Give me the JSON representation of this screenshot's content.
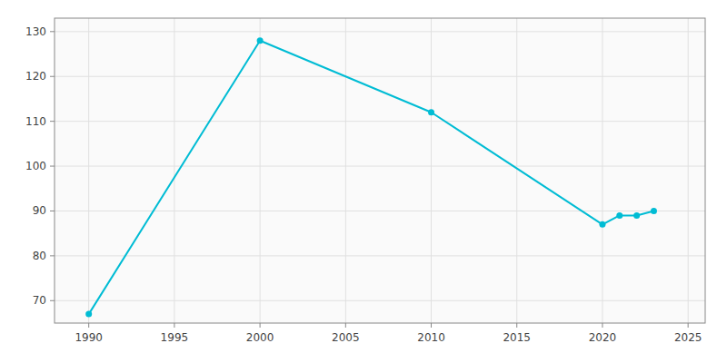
{
  "chart_data": {
    "type": "line",
    "x": [
      1990,
      2000,
      2010,
      2020,
      2021,
      2022,
      2023
    ],
    "values": [
      67,
      128,
      112,
      87,
      89,
      89,
      90
    ],
    "color": "#00bcd4",
    "marker": "circle",
    "xlim": [
      1988,
      2026
    ],
    "ylim": [
      65,
      133
    ],
    "xticks": [
      1990,
      1995,
      2000,
      2005,
      2010,
      2015,
      2020,
      2025
    ],
    "yticks": [
      70,
      80,
      90,
      100,
      110,
      120,
      130
    ],
    "grid": true
  }
}
